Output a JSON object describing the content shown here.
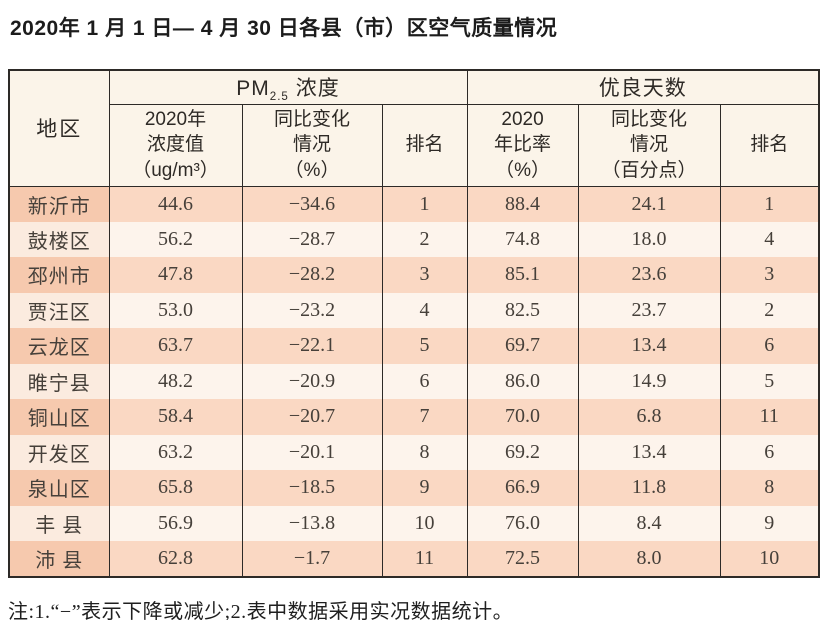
{
  "page": {
    "title": "2020年 1 月 1 日— 4 月 30 日各县（市）区空气质量情况",
    "note": "注:1.“−”表示下降或减少;2.表中数据采用实况数据统计。"
  },
  "colors": {
    "header_bg": "#fbf4e9",
    "row_odd_region_bg": "#f6c9ae",
    "row_odd_bg": "#fad8c3",
    "row_even_region_bg": "#fbebdf",
    "row_even_bg": "#fdf4ec",
    "border": "#2d2a27",
    "title_text": "#1c1c1c",
    "header_text": "#2e2a26",
    "body_text": "#46403a",
    "note_text": "#1f1f1f"
  },
  "table": {
    "header": {
      "region": "地区",
      "pm_group": {
        "prefix": "PM",
        "sub": "2.5",
        "suffix": " 浓度"
      },
      "good_group": "优良天数",
      "columns": [
        {
          "id": "pm-2020-value",
          "lines": [
            "2020年",
            "浓度值",
            "（ug/m³）"
          ]
        },
        {
          "id": "pm-yoy-change",
          "lines": [
            "同比变化",
            "情况",
            "（%）"
          ]
        },
        {
          "id": "pm-rank",
          "lines": [
            "排名"
          ]
        },
        {
          "id": "good-2020-ratio",
          "lines": [
            "2020",
            "年比率",
            "（%）"
          ]
        },
        {
          "id": "good-yoy-change",
          "lines": [
            "同比变化",
            "情况",
            "（百分点）"
          ]
        },
        {
          "id": "good-rank",
          "lines": [
            "排名"
          ]
        }
      ]
    },
    "rows": [
      [
        "新沂市",
        "44.6",
        "−34.6",
        "1",
        "88.4",
        "24.1",
        "1"
      ],
      [
        "鼓楼区",
        "56.2",
        "−28.7",
        "2",
        "74.8",
        "18.0",
        "4"
      ],
      [
        "邳州市",
        "47.8",
        "−28.2",
        "3",
        "85.1",
        "23.6",
        "3"
      ],
      [
        "贾汪区",
        "53.0",
        "−23.2",
        "4",
        "82.5",
        "23.7",
        "2"
      ],
      [
        "云龙区",
        "63.7",
        "−22.1",
        "5",
        "69.7",
        "13.4",
        "6"
      ],
      [
        "睢宁县",
        "48.2",
        "−20.9",
        "6",
        "86.0",
        "14.9",
        "5"
      ],
      [
        "铜山区",
        "58.4",
        "−20.7",
        "7",
        "70.0",
        "6.8",
        "11"
      ],
      [
        "开发区",
        "63.2",
        "−20.1",
        "8",
        "69.2",
        "13.4",
        "6"
      ],
      [
        "泉山区",
        "65.8",
        "−18.5",
        "9",
        "66.9",
        "11.8",
        "8"
      ],
      [
        "丰 县",
        "56.9",
        "−13.8",
        "10",
        "76.0",
        "8.4",
        "9"
      ],
      [
        "沛 县",
        "62.8",
        "−1.7",
        "11",
        "72.5",
        "8.0",
        "10"
      ]
    ]
  }
}
